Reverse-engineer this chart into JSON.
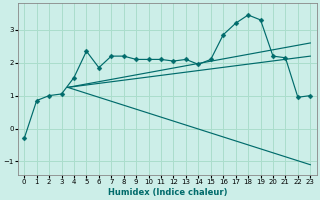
{
  "xlabel": "Humidex (Indice chaleur)",
  "background_color": "#cceee8",
  "grid_color": "#aaddcc",
  "line_color": "#006b6b",
  "marker": "D",
  "markersize": 2.5,
  "xlim": [
    -0.5,
    23.5
  ],
  "ylim": [
    -1.4,
    3.8
  ],
  "yticks": [
    -1,
    0,
    1,
    2,
    3
  ],
  "xticks": [
    0,
    1,
    2,
    3,
    4,
    5,
    6,
    7,
    8,
    9,
    10,
    11,
    12,
    13,
    14,
    15,
    16,
    17,
    18,
    19,
    20,
    21,
    22,
    23
  ],
  "curve1_x": [
    0,
    1,
    2,
    3,
    4,
    5,
    6,
    7,
    8,
    9,
    10,
    11,
    12,
    13,
    14,
    15,
    16,
    17,
    18,
    19,
    20,
    21,
    22,
    23
  ],
  "curve1_y": [
    -0.3,
    0.85,
    1.0,
    1.05,
    1.55,
    2.35,
    1.85,
    2.2,
    2.2,
    2.1,
    2.1,
    2.1,
    2.05,
    2.1,
    1.95,
    2.1,
    2.85,
    3.2,
    3.45,
    3.3,
    2.2,
    2.15,
    0.95,
    1.0
  ],
  "line1_x": [
    3.5,
    23
  ],
  "line1_y": [
    1.25,
    -1.1
  ],
  "line2_x": [
    3.5,
    23
  ],
  "line2_y": [
    1.25,
    2.6
  ],
  "line3_x": [
    3.5,
    23
  ],
  "line3_y": [
    1.25,
    2.2
  ]
}
